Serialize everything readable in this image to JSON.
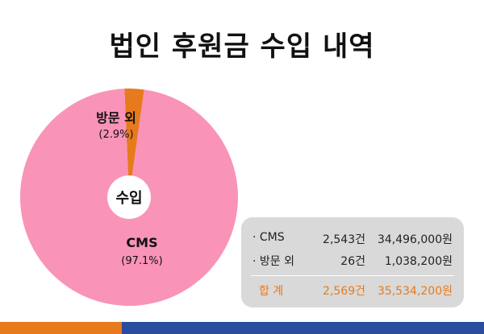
{
  "title": "법인 후원금 수입 내역",
  "chart_data": {
    "type": "pie",
    "center_label": "수입",
    "slices": [
      {
        "label": "CMS",
        "percent_label": "(97.1%)",
        "value": 97.1,
        "color": "#f993b8"
      },
      {
        "label": "방문 외",
        "percent_label": "(2.9%)",
        "value": 2.9,
        "color": "#e87a1e"
      }
    ]
  },
  "summary": {
    "rows": [
      {
        "label": "· CMS",
        "count": "2,543건",
        "amount": "34,496,000원"
      },
      {
        "label": "· 방문 외",
        "count": "26건",
        "amount": "1,038,200원"
      }
    ],
    "total": {
      "label": "합   계",
      "count": "2,569건",
      "amount": "35,534,200원"
    }
  },
  "colors": {
    "accent_orange": "#e87a1e",
    "accent_blue": "#2b4d9e",
    "pie_pink": "#f993b8",
    "panel_gray": "#d9d9d9"
  }
}
